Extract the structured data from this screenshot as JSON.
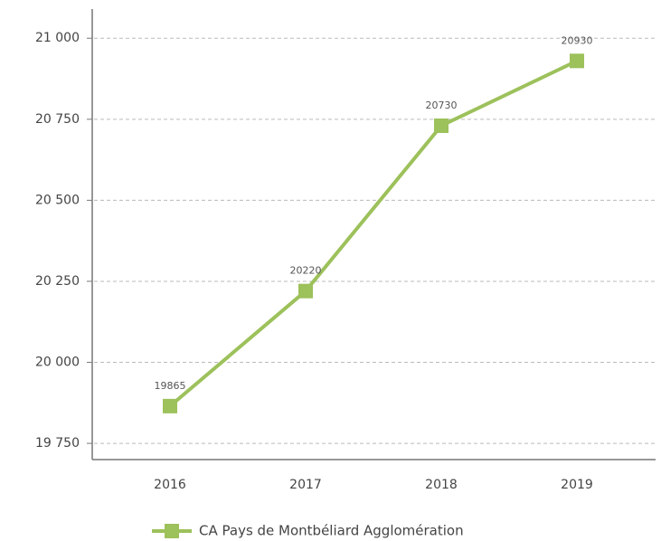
{
  "chart_data": {
    "type": "line",
    "categories": [
      "2016",
      "2017",
      "2018",
      "2019"
    ],
    "series": [
      {
        "name": "CA Pays de Montbéliard Agglomération",
        "color": "#9dc15b",
        "values": [
          19865,
          20220,
          20730,
          20930
        ]
      }
    ],
    "ylim": [
      19700,
      21090
    ],
    "yticks": [
      {
        "value": 19750,
        "label": "19 750"
      },
      {
        "value": 20000,
        "label": "20 000"
      },
      {
        "value": 20250,
        "label": "20 250"
      },
      {
        "value": 20500,
        "label": "20 500"
      },
      {
        "value": 20750,
        "label": "20 750"
      },
      {
        "value": 21000,
        "label": "21 000"
      }
    ],
    "grid": true,
    "legend": "bottom"
  }
}
